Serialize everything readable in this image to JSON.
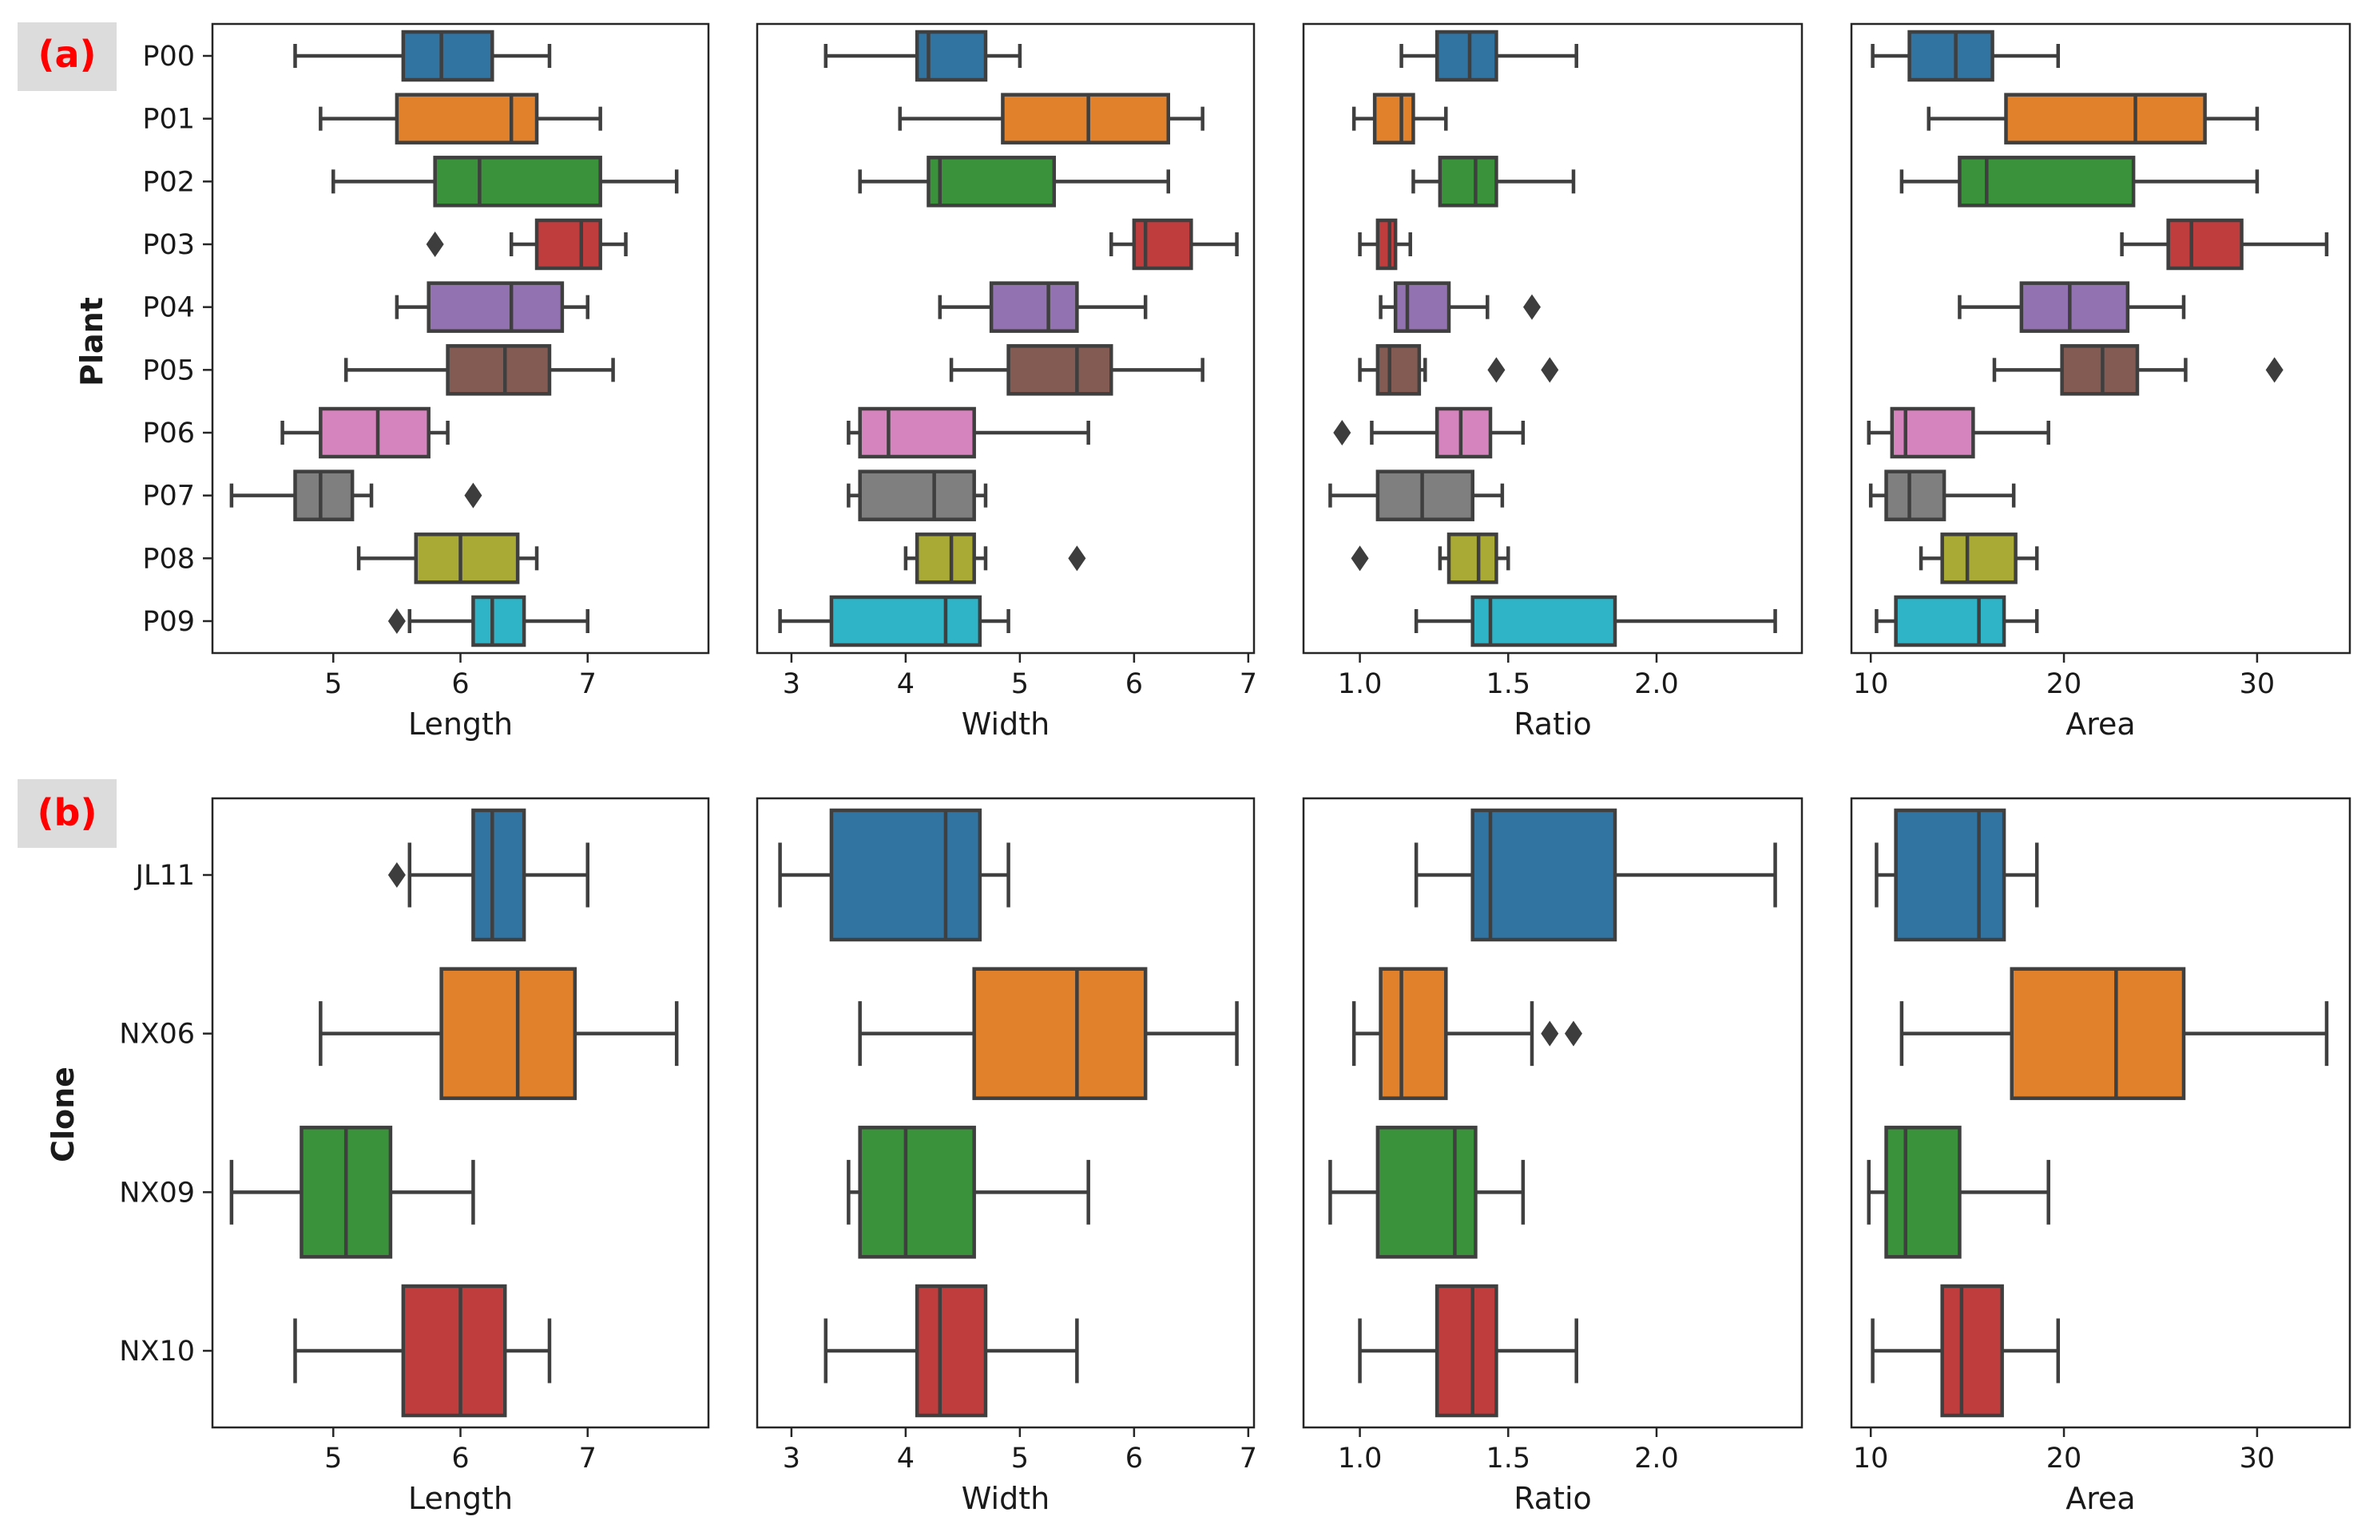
{
  "panel_labels": {
    "a": "(a)",
    "b": "(b)"
  },
  "chart_data": [
    {
      "type": "boxplot",
      "panel": "(a)",
      "ylabel": "Plant",
      "categories": [
        "P00",
        "P01",
        "P02",
        "P03",
        "P04",
        "P05",
        "P06",
        "P07",
        "P08",
        "P09"
      ],
      "colors": [
        "#3274a1",
        "#e1812c",
        "#3a923a",
        "#c03d3e",
        "#9372b2",
        "#845b53",
        "#d684bd",
        "#7f7f7f",
        "#a9aa35",
        "#2eb4c6"
      ],
      "subplots": [
        {
          "xlabel": "Length",
          "xlim": [
            4.05,
            7.95
          ],
          "xticks": [
            5,
            6,
            7
          ],
          "boxes": [
            {
              "whislo": 4.7,
              "q1": 5.55,
              "med": 5.85,
              "q3": 6.25,
              "whishi": 6.7,
              "fliers": []
            },
            {
              "whislo": 4.9,
              "q1": 5.5,
              "med": 6.4,
              "q3": 6.6,
              "whishi": 7.1,
              "fliers": []
            },
            {
              "whislo": 5.0,
              "q1": 5.8,
              "med": 6.15,
              "q3": 7.1,
              "whishi": 7.7,
              "fliers": []
            },
            {
              "whislo": 6.4,
              "q1": 6.6,
              "med": 6.95,
              "q3": 7.1,
              "whishi": 7.3,
              "fliers": [
                5.8
              ]
            },
            {
              "whislo": 5.5,
              "q1": 5.75,
              "med": 6.4,
              "q3": 6.8,
              "whishi": 7.0,
              "fliers": []
            },
            {
              "whislo": 5.1,
              "q1": 5.9,
              "med": 6.35,
              "q3": 6.7,
              "whishi": 7.2,
              "fliers": []
            },
            {
              "whislo": 4.6,
              "q1": 4.9,
              "med": 5.35,
              "q3": 5.75,
              "whishi": 5.9,
              "fliers": []
            },
            {
              "whislo": 4.2,
              "q1": 4.7,
              "med": 4.9,
              "q3": 5.15,
              "whishi": 5.3,
              "fliers": [
                6.1
              ]
            },
            {
              "whislo": 5.2,
              "q1": 5.65,
              "med": 6.0,
              "q3": 6.45,
              "whishi": 6.6,
              "fliers": []
            },
            {
              "whislo": 5.6,
              "q1": 6.1,
              "med": 6.25,
              "q3": 6.5,
              "whishi": 7.0,
              "fliers": [
                5.5
              ]
            }
          ]
        },
        {
          "xlabel": "Width",
          "xlim": [
            2.7,
            7.05
          ],
          "xticks": [
            3,
            4,
            5,
            6,
            7
          ],
          "boxes": [
            {
              "whislo": 3.3,
              "q1": 4.1,
              "med": 4.2,
              "q3": 4.7,
              "whishi": 5.0,
              "fliers": []
            },
            {
              "whislo": 3.95,
              "q1": 4.85,
              "med": 5.6,
              "q3": 6.3,
              "whishi": 6.6,
              "fliers": []
            },
            {
              "whislo": 3.6,
              "q1": 4.2,
              "med": 4.3,
              "q3": 5.3,
              "whishi": 6.3,
              "fliers": []
            },
            {
              "whislo": 5.8,
              "q1": 6.0,
              "med": 6.1,
              "q3": 6.5,
              "whishi": 6.9,
              "fliers": []
            },
            {
              "whislo": 4.3,
              "q1": 4.75,
              "med": 5.25,
              "q3": 5.5,
              "whishi": 6.1,
              "fliers": []
            },
            {
              "whislo": 4.4,
              "q1": 4.9,
              "med": 5.5,
              "q3": 5.8,
              "whishi": 6.6,
              "fliers": []
            },
            {
              "whislo": 3.5,
              "q1": 3.6,
              "med": 3.85,
              "q3": 4.6,
              "whishi": 5.6,
              "fliers": []
            },
            {
              "whislo": 3.5,
              "q1": 3.6,
              "med": 4.25,
              "q3": 4.6,
              "whishi": 4.7,
              "fliers": []
            },
            {
              "whislo": 4.0,
              "q1": 4.1,
              "med": 4.4,
              "q3": 4.6,
              "whishi": 4.7,
              "fliers": [
                5.5
              ]
            },
            {
              "whislo": 2.9,
              "q1": 3.35,
              "med": 4.35,
              "q3": 4.65,
              "whishi": 4.9,
              "fliers": []
            }
          ]
        },
        {
          "xlabel": "Ratio",
          "xlim": [
            0.81,
            2.49
          ],
          "xticks": [
            1.0,
            1.5,
            2.0
          ],
          "xticklabels": [
            "1.0",
            "1.5",
            "2.0"
          ],
          "boxes": [
            {
              "whislo": 1.14,
              "q1": 1.26,
              "med": 1.37,
              "q3": 1.46,
              "whishi": 1.73,
              "fliers": []
            },
            {
              "whislo": 0.98,
              "q1": 1.05,
              "med": 1.14,
              "q3": 1.18,
              "whishi": 1.29,
              "fliers": []
            },
            {
              "whislo": 1.18,
              "q1": 1.27,
              "med": 1.39,
              "q3": 1.46,
              "whishi": 1.72,
              "fliers": []
            },
            {
              "whislo": 1.0,
              "q1": 1.06,
              "med": 1.1,
              "q3": 1.12,
              "whishi": 1.17,
              "fliers": []
            },
            {
              "whislo": 1.07,
              "q1": 1.12,
              "med": 1.16,
              "q3": 1.3,
              "whishi": 1.43,
              "fliers": [
                1.58
              ]
            },
            {
              "whislo": 1.0,
              "q1": 1.06,
              "med": 1.1,
              "q3": 1.2,
              "whishi": 1.22,
              "fliers": [
                1.46,
                1.64
              ]
            },
            {
              "whislo": 1.04,
              "q1": 1.26,
              "med": 1.34,
              "q3": 1.44,
              "whishi": 1.55,
              "fliers": [
                0.94
              ]
            },
            {
              "whislo": 0.9,
              "q1": 1.06,
              "med": 1.21,
              "q3": 1.38,
              "whishi": 1.48,
              "fliers": []
            },
            {
              "whislo": 1.27,
              "q1": 1.3,
              "med": 1.4,
              "q3": 1.46,
              "whishi": 1.5,
              "fliers": [
                1.0
              ]
            },
            {
              "whislo": 1.19,
              "q1": 1.38,
              "med": 1.44,
              "q3": 1.86,
              "whishi": 2.4,
              "fliers": []
            }
          ]
        },
        {
          "xlabel": "Area",
          "xlim": [
            9.0,
            34.8
          ],
          "xticks": [
            10,
            20,
            30
          ],
          "boxes": [
            {
              "whislo": 10.1,
              "q1": 12.0,
              "med": 14.4,
              "q3": 16.3,
              "whishi": 19.7,
              "fliers": []
            },
            {
              "whislo": 13.0,
              "q1": 17.0,
              "med": 23.7,
              "q3": 27.3,
              "whishi": 30.0,
              "fliers": []
            },
            {
              "whislo": 11.6,
              "q1": 14.6,
              "med": 16.0,
              "q3": 23.6,
              "whishi": 30.0,
              "fliers": []
            },
            {
              "whislo": 23.0,
              "q1": 25.4,
              "med": 26.6,
              "q3": 29.2,
              "whishi": 33.6,
              "fliers": []
            },
            {
              "whislo": 14.6,
              "q1": 17.8,
              "med": 20.3,
              "q3": 23.3,
              "whishi": 26.2,
              "fliers": []
            },
            {
              "whislo": 16.4,
              "q1": 19.9,
              "med": 22.0,
              "q3": 23.8,
              "whishi": 26.3,
              "fliers": [
                30.9
              ]
            },
            {
              "whislo": 9.9,
              "q1": 11.1,
              "med": 11.8,
              "q3": 15.3,
              "whishi": 19.2,
              "fliers": []
            },
            {
              "whislo": 10.0,
              "q1": 10.8,
              "med": 12.0,
              "q3": 13.8,
              "whishi": 17.4,
              "fliers": []
            },
            {
              "whislo": 12.6,
              "q1": 13.7,
              "med": 15.0,
              "q3": 17.5,
              "whishi": 18.6,
              "fliers": []
            },
            {
              "whislo": 10.3,
              "q1": 11.3,
              "med": 15.6,
              "q3": 16.9,
              "whishi": 18.6,
              "fliers": []
            }
          ]
        }
      ]
    },
    {
      "type": "boxplot",
      "panel": "(b)",
      "ylabel": "Clone",
      "categories": [
        "JL11",
        "NX06",
        "NX09",
        "NX10"
      ],
      "colors": [
        "#3274a1",
        "#e1812c",
        "#3a923a",
        "#c03d3e"
      ],
      "subplots": [
        {
          "xlabel": "Length",
          "xlim": [
            4.05,
            7.95
          ],
          "xticks": [
            5,
            6,
            7
          ],
          "boxes": [
            {
              "whislo": 5.6,
              "q1": 6.1,
              "med": 6.25,
              "q3": 6.5,
              "whishi": 7.0,
              "fliers": [
                5.5
              ]
            },
            {
              "whislo": 4.9,
              "q1": 5.85,
              "med": 6.45,
              "q3": 6.9,
              "whishi": 7.7,
              "fliers": []
            },
            {
              "whislo": 4.2,
              "q1": 4.75,
              "med": 5.1,
              "q3": 5.45,
              "whishi": 6.1,
              "fliers": []
            },
            {
              "whislo": 4.7,
              "q1": 5.55,
              "med": 6.0,
              "q3": 6.35,
              "whishi": 6.7,
              "fliers": []
            }
          ]
        },
        {
          "xlabel": "Width",
          "xlim": [
            2.7,
            7.05
          ],
          "xticks": [
            3,
            4,
            5,
            6,
            7
          ],
          "boxes": [
            {
              "whislo": 2.9,
              "q1": 3.35,
              "med": 4.35,
              "q3": 4.65,
              "whishi": 4.9,
              "fliers": []
            },
            {
              "whislo": 3.6,
              "q1": 4.6,
              "med": 5.5,
              "q3": 6.1,
              "whishi": 6.9,
              "fliers": []
            },
            {
              "whislo": 3.5,
              "q1": 3.6,
              "med": 4.0,
              "q3": 4.6,
              "whishi": 5.6,
              "fliers": []
            },
            {
              "whislo": 3.3,
              "q1": 4.1,
              "med": 4.3,
              "q3": 4.7,
              "whishi": 5.5,
              "fliers": []
            }
          ]
        },
        {
          "xlabel": "Ratio",
          "xlim": [
            0.81,
            2.49
          ],
          "xticks": [
            1.0,
            1.5,
            2.0
          ],
          "xticklabels": [
            "1.0",
            "1.5",
            "2.0"
          ],
          "boxes": [
            {
              "whislo": 1.19,
              "q1": 1.38,
              "med": 1.44,
              "q3": 1.86,
              "whishi": 2.4,
              "fliers": []
            },
            {
              "whislo": 0.98,
              "q1": 1.07,
              "med": 1.14,
              "q3": 1.29,
              "whishi": 1.58,
              "fliers": [
                1.64,
                1.72
              ]
            },
            {
              "whislo": 0.9,
              "q1": 1.06,
              "med": 1.32,
              "q3": 1.39,
              "whishi": 1.55,
              "fliers": []
            },
            {
              "whislo": 1.0,
              "q1": 1.26,
              "med": 1.38,
              "q3": 1.46,
              "whishi": 1.73,
              "fliers": []
            }
          ]
        },
        {
          "xlabel": "Area",
          "xlim": [
            9.0,
            34.8
          ],
          "xticks": [
            10,
            20,
            30
          ],
          "boxes": [
            {
              "whislo": 10.3,
              "q1": 11.3,
              "med": 15.6,
              "q3": 16.9,
              "whishi": 18.6,
              "fliers": []
            },
            {
              "whislo": 11.6,
              "q1": 17.3,
              "med": 22.7,
              "q3": 26.2,
              "whishi": 33.6,
              "fliers": []
            },
            {
              "whislo": 9.9,
              "q1": 10.8,
              "med": 11.8,
              "q3": 14.6,
              "whishi": 19.2,
              "fliers": []
            },
            {
              "whislo": 10.1,
              "q1": 13.7,
              "med": 14.7,
              "q3": 16.8,
              "whishi": 19.7,
              "fliers": []
            }
          ]
        }
      ]
    }
  ]
}
